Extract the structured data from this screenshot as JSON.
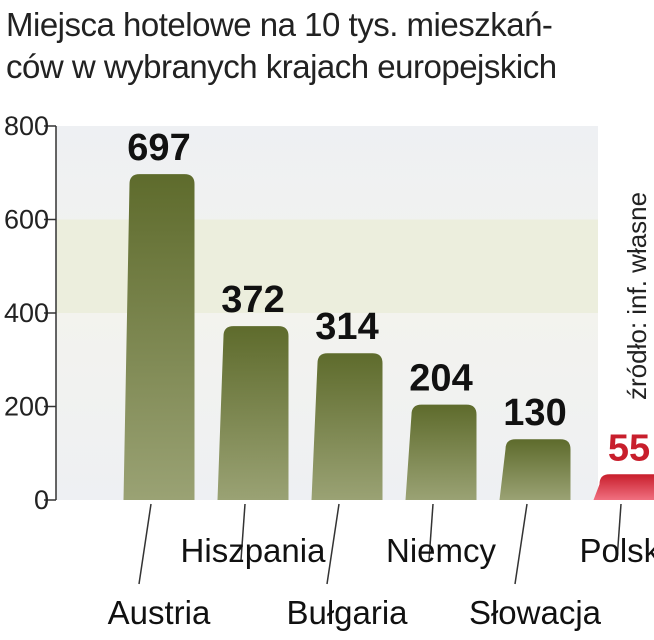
{
  "title_lines": [
    "Miejsca hotelowe na 10 tys. mieszkań-",
    "ców w wybranych krajach europejskich"
  ],
  "source": "źródło: inf. własne",
  "chart_data": {
    "type": "bar",
    "categories": [
      "Austria",
      "Hiszpania",
      "Bułgaria",
      "Niemcy",
      "Słowacja",
      "Polska"
    ],
    "values": [
      697,
      372,
      314,
      204,
      130,
      55
    ],
    "ylim": [
      0,
      800
    ],
    "yticks": [
      0,
      200,
      400,
      600,
      800
    ],
    "highlight": "Polska",
    "colors": {
      "bar": "#5e6b2c",
      "bar_light": "#9aa274",
      "highlight": "#c81e2c",
      "highlight_light": "#f07080"
    },
    "grid": false
  }
}
